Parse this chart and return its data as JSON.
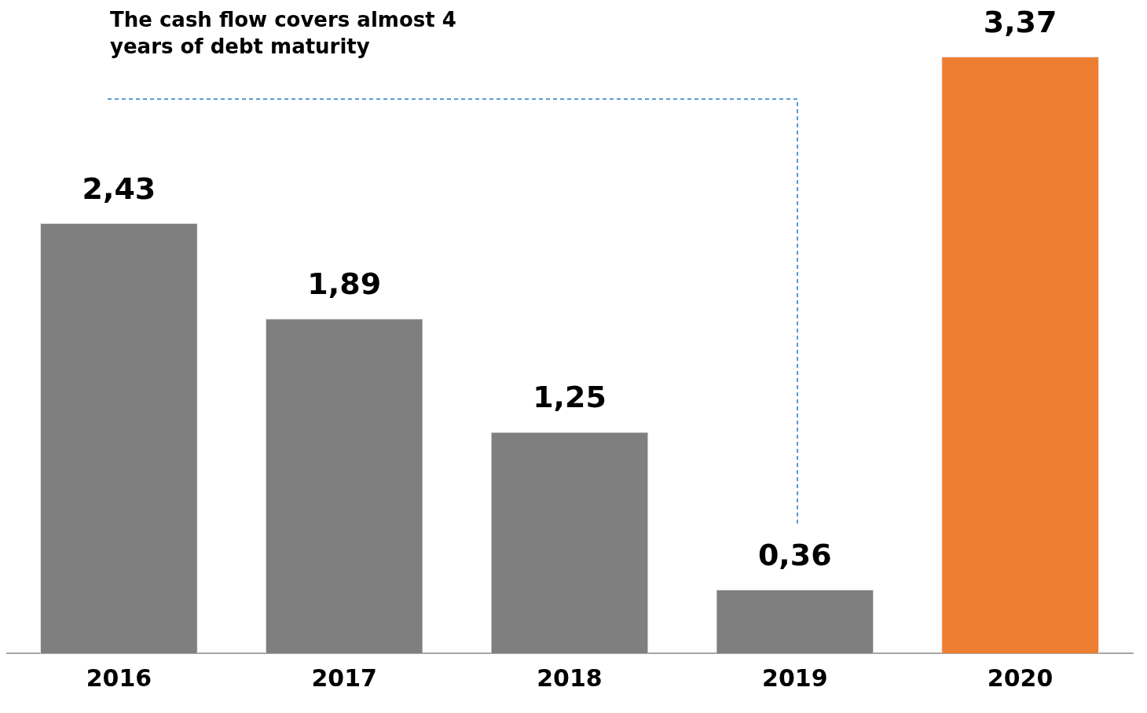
{
  "chart_data": {
    "type": "bar",
    "categories": [
      "2016",
      "2017",
      "2018",
      "2019",
      "2020"
    ],
    "values": [
      2.43,
      1.89,
      1.25,
      0.36,
      3.37
    ],
    "colors": [
      "#7f7f7f",
      "#7f7f7f",
      "#7f7f7f",
      "#7f7f7f",
      "#ed7d31"
    ],
    "value_labels": [
      "2,43",
      "1,89",
      "1,25",
      "0,36",
      "3,37"
    ],
    "annotations": [
      "The cash flow covers almost 4 years of debt maturity"
    ],
    "grid": false,
    "legend": false
  }
}
